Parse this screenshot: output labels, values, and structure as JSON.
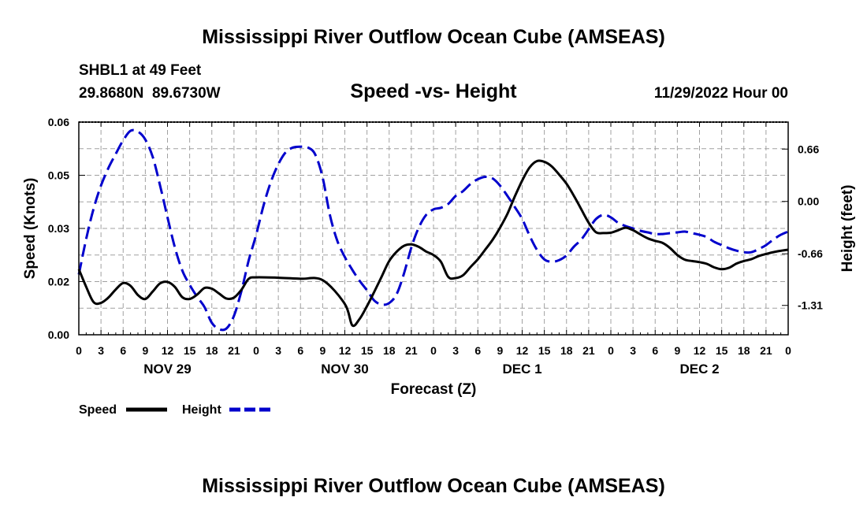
{
  "header": {
    "title": "Mississippi River Outflow Ocean Cube (AMSEAS)",
    "station": "SHBL1 at 49 Feet",
    "coords": "29.8680N  89.6730W",
    "subtitle": "Speed -vs- Height",
    "datetime": "11/29/2022 Hour 00"
  },
  "footer": {
    "title": "Mississippi River Outflow Ocean Cube (AMSEAS)"
  },
  "legend": {
    "speed_label": "Speed",
    "height_label": "Height"
  },
  "colors": {
    "speed": "#000000",
    "height": "#0000cc",
    "grid": "#a0a0a0"
  },
  "chart_data": {
    "type": "line",
    "title": "Speed -vs- Height",
    "xlabel": "Forecast (Z)",
    "ylabel": "Speed (Knots)",
    "y2label": "Height (feet)",
    "x_unit": "forecast hours",
    "xlim": [
      0,
      96
    ],
    "ylim": [
      0,
      0.06
    ],
    "y2lim": [
      -1.68,
      1.0
    ],
    "grid": true,
    "x_ticks": [
      0,
      3,
      6,
      9,
      12,
      15,
      18,
      21,
      24,
      27,
      30,
      33,
      36,
      39,
      42,
      45,
      48,
      51,
      54,
      57,
      60,
      63,
      66,
      69,
      72,
      75,
      78,
      81,
      84,
      87,
      90,
      93,
      96
    ],
    "x_tick_labels": [
      "0",
      "3",
      "6",
      "9",
      "12",
      "15",
      "18",
      "21",
      "0",
      "3",
      "6",
      "9",
      "12",
      "15",
      "18",
      "21",
      "0",
      "3",
      "6",
      "9",
      "12",
      "15",
      "18",
      "21",
      "0",
      "3",
      "6",
      "9",
      "12",
      "15",
      "18",
      "21",
      "0"
    ],
    "day_labels": [
      {
        "label": "NOV 29",
        "hour": 12
      },
      {
        "label": "NOV 30",
        "hour": 36
      },
      {
        "label": "DEC 1",
        "hour": 60
      },
      {
        "label": "DEC 2",
        "hour": 84
      }
    ],
    "y_ticks": [
      0,
      0.015,
      0.03,
      0.045,
      0.06
    ],
    "y_tick_labels": [
      "0.00",
      "0.02",
      "0.03",
      "0.05",
      "0.06"
    ],
    "y2_ticks": [
      0.66,
      0.0,
      -0.66,
      -1.31
    ],
    "y2_tick_labels": [
      "0.66",
      "0.00",
      "-0.66",
      "-1.31"
    ],
    "series": [
      {
        "name": "Speed",
        "axis": "left",
        "style": "solid",
        "x": [
          0,
          1,
          2,
          3,
          4,
          5,
          6,
          7,
          8,
          9,
          10,
          11,
          12,
          13,
          14,
          15,
          16,
          17,
          18,
          19,
          20,
          21,
          22,
          23,
          24,
          27,
          30,
          33,
          36,
          37,
          38,
          39,
          40,
          41,
          42,
          43,
          44,
          45,
          46,
          47,
          48,
          49,
          50,
          51,
          52,
          53,
          54,
          55,
          56,
          57,
          58,
          59,
          60,
          61,
          62,
          63,
          64,
          65,
          66,
          67,
          68,
          69,
          70,
          71,
          72,
          73,
          74,
          75,
          76,
          77,
          78,
          79,
          80,
          81,
          82,
          83,
          84,
          85,
          86,
          87,
          88,
          89,
          90,
          91,
          92,
          93,
          94,
          95,
          96
        ],
        "values": [
          0.0185,
          0.0135,
          0.0092,
          0.009,
          0.0105,
          0.0128,
          0.0146,
          0.0138,
          0.0112,
          0.0101,
          0.0122,
          0.0145,
          0.0149,
          0.0135,
          0.0106,
          0.0101,
          0.0113,
          0.0132,
          0.013,
          0.0116,
          0.0102,
          0.0105,
          0.0127,
          0.0158,
          0.0162,
          0.0161,
          0.0158,
          0.0154,
          0.0087,
          0.0027,
          0.0045,
          0.0081,
          0.0122,
          0.0165,
          0.0208,
          0.0234,
          0.0251,
          0.0255,
          0.0248,
          0.0235,
          0.0225,
          0.0206,
          0.0163,
          0.016,
          0.0168,
          0.0191,
          0.0213,
          0.024,
          0.0268,
          0.0302,
          0.0341,
          0.039,
          0.0435,
          0.0472,
          0.049,
          0.0488,
          0.0475,
          0.0452,
          0.0426,
          0.0392,
          0.0354,
          0.0316,
          0.0289,
          0.0287,
          0.0288,
          0.0295,
          0.0302,
          0.0295,
          0.0283,
          0.0272,
          0.0265,
          0.0259,
          0.0245,
          0.0225,
          0.0212,
          0.0208,
          0.0205,
          0.02,
          0.019,
          0.0185,
          0.0189,
          0.0201,
          0.0208,
          0.0213,
          0.0222,
          0.0228,
          0.0233,
          0.0237,
          0.024
        ]
      },
      {
        "name": "Height",
        "axis": "right",
        "style": "dashed",
        "x": [
          0,
          1,
          2,
          3,
          4,
          5,
          6,
          7,
          8,
          9,
          10,
          11,
          12,
          13,
          14,
          15,
          16,
          17,
          18,
          19,
          20,
          21,
          22,
          23,
          24,
          25,
          26,
          27,
          28,
          29,
          30,
          31,
          32,
          33,
          34,
          35,
          36,
          37,
          38,
          39,
          40,
          41,
          42,
          43,
          44,
          45,
          46,
          47,
          48,
          49,
          50,
          51,
          52,
          53,
          54,
          55,
          56,
          57,
          58,
          59,
          60,
          61,
          62,
          63,
          64,
          65,
          66,
          67,
          68,
          69,
          70,
          71,
          72,
          73,
          74,
          75,
          76,
          77,
          78,
          79,
          80,
          81,
          82,
          83,
          84,
          85,
          86,
          87,
          88,
          89,
          90,
          91,
          92,
          93,
          94,
          95,
          96
        ],
        "values": [
          -0.92,
          -0.47,
          -0.09,
          0.2,
          0.42,
          0.6,
          0.77,
          0.89,
          0.88,
          0.78,
          0.56,
          0.2,
          -0.2,
          -0.58,
          -0.87,
          -1.05,
          -1.2,
          -1.33,
          -1.53,
          -1.61,
          -1.6,
          -1.44,
          -1.13,
          -0.74,
          -0.42,
          -0.05,
          0.25,
          0.47,
          0.62,
          0.68,
          0.69,
          0.68,
          0.59,
          0.3,
          -0.18,
          -0.5,
          -0.7,
          -0.86,
          -1.0,
          -1.12,
          -1.25,
          -1.3,
          -1.28,
          -1.17,
          -0.91,
          -0.58,
          -0.33,
          -0.17,
          -0.1,
          -0.08,
          -0.03,
          0.07,
          0.13,
          0.22,
          0.28,
          0.31,
          0.29,
          0.2,
          0.07,
          -0.07,
          -0.22,
          -0.43,
          -0.61,
          -0.73,
          -0.76,
          -0.74,
          -0.68,
          -0.57,
          -0.48,
          -0.35,
          -0.22,
          -0.17,
          -0.2,
          -0.27,
          -0.31,
          -0.34,
          -0.37,
          -0.39,
          -0.41,
          -0.41,
          -0.4,
          -0.39,
          -0.38,
          -0.4,
          -0.42,
          -0.45,
          -0.51,
          -0.55,
          -0.59,
          -0.62,
          -0.64,
          -0.64,
          -0.6,
          -0.55,
          -0.48,
          -0.42,
          -0.38
        ]
      }
    ]
  }
}
